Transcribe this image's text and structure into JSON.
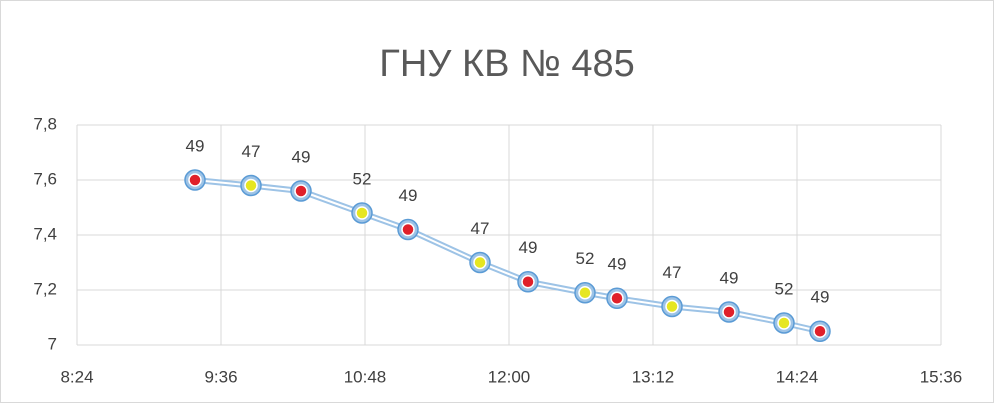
{
  "chart_data": {
    "type": "line",
    "title": "ГНУ КВ № 485",
    "x": [
      563,
      591,
      616,
      646.5,
      669.5,
      705.5,
      729.5,
      758,
      774,
      801.5,
      830,
      857.5,
      875.5
    ],
    "series": [
      {
        "values": [
          7.6,
          7.58,
          7.56,
          7.48,
          7.42,
          7.3,
          7.23,
          7.19,
          7.17,
          7.14,
          7.12,
          7.08,
          7.05
        ],
        "color": "#9dc3e6",
        "marker_colors": [
          "#e0202a",
          "#e6e621",
          "#e0202a",
          "#e6e621",
          "#e0202a",
          "#e6e621",
          "#e0202a",
          "#e6e621",
          "#e0202a",
          "#e6e621",
          "#e0202a",
          "#e6e621",
          "#e0202a"
        ],
        "point_labels": [
          "49",
          "47",
          "49",
          "52",
          "49",
          "47",
          "49",
          "52",
          "49",
          "47",
          "49",
          "52",
          "49"
        ]
      }
    ],
    "xlim": [
      504,
      936
    ],
    "xticks": [
      {
        "value": 504,
        "label": "8:24"
      },
      {
        "value": 576,
        "label": "9:36"
      },
      {
        "value": 648,
        "label": "10:48"
      },
      {
        "value": 720,
        "label": "12:00"
      },
      {
        "value": 792,
        "label": "13:12"
      },
      {
        "value": 864,
        "label": "14:24"
      },
      {
        "value": 936,
        "label": "15:36"
      }
    ],
    "ylim": [
      7,
      7.8
    ],
    "yticks": [
      7,
      {
        "value": 7.2,
        "label": "7,2"
      },
      {
        "value": 7.4,
        "label": "7,4"
      },
      {
        "value": 7.6,
        "label": "7,6"
      },
      {
        "value": 7.8,
        "label": "7,8"
      }
    ],
    "grid": true
  }
}
